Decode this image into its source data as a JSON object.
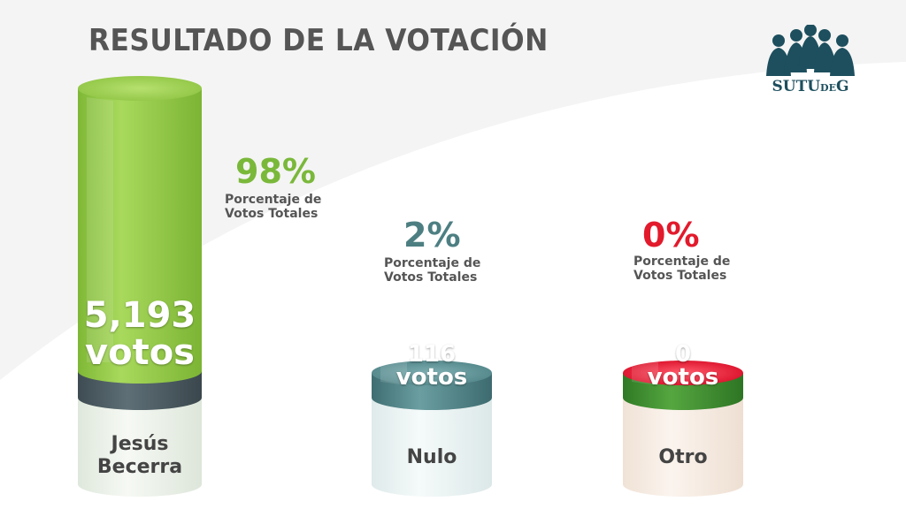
{
  "title": "RESULTADO DE LA VOTACIÓN",
  "logo": {
    "main": "SUTU",
    "small": "DE",
    "end": "G",
    "color": "#1d4f5e"
  },
  "chart_data": {
    "type": "bar",
    "title": "RESULTADO DE LA VOTACIÓN",
    "categories": [
      "Jesús Becerra",
      "Nulo",
      "Otro"
    ],
    "values": [
      5193,
      116,
      0
    ],
    "value_labels": [
      "5,193",
      "116",
      "0"
    ],
    "unit_label": "votos",
    "percent_labels": [
      "98%",
      "2%",
      "0%"
    ],
    "percent_caption_line1": "Porcentaje de",
    "percent_caption_line2": "Votos Totales",
    "colors": {
      "Jesús Becerra": "#8cc63f",
      "Nulo": "#4d7f82",
      "Otro": "#3f8f34"
    },
    "percent_colors": [
      "#7ab83a",
      "#4d7f82",
      "#e21a2c"
    ],
    "cap_colors": [
      "#9ed451",
      "#5f9598",
      "#e8102c"
    ]
  }
}
